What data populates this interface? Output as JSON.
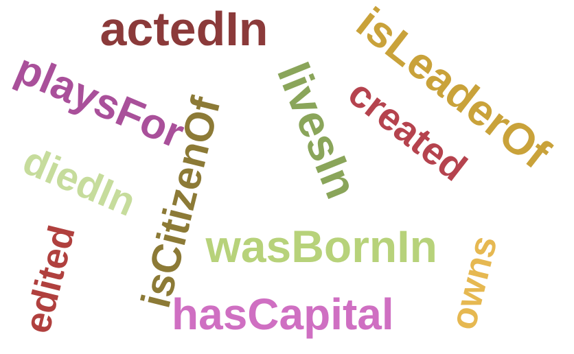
{
  "words": [
    {
      "key": "actedin",
      "text": "actedIn",
      "color": "#8b3a3a"
    },
    {
      "key": "isleaderof",
      "text": "isLeaderOf",
      "color": "#c9a23a"
    },
    {
      "key": "livesin",
      "text": "livesIn",
      "color": "#8aa55a"
    },
    {
      "key": "created",
      "text": "created",
      "color": "#b5434e"
    },
    {
      "key": "playsfor",
      "text": "playsFor",
      "color": "#a9509a"
    },
    {
      "key": "iscitizenof",
      "text": "isCitizenOf",
      "color": "#8c7a36"
    },
    {
      "key": "diedin",
      "text": "diedIn",
      "color": "#c6dc9c"
    },
    {
      "key": "wasbornin",
      "text": "wasBornIn",
      "color": "#b7d27a"
    },
    {
      "key": "edited",
      "text": "edited",
      "color": "#b0403e"
    },
    {
      "key": "hascapital",
      "text": "hasCapital",
      "color": "#cf6fc2"
    },
    {
      "key": "owns",
      "text": "owns",
      "color": "#e6b851"
    }
  ]
}
